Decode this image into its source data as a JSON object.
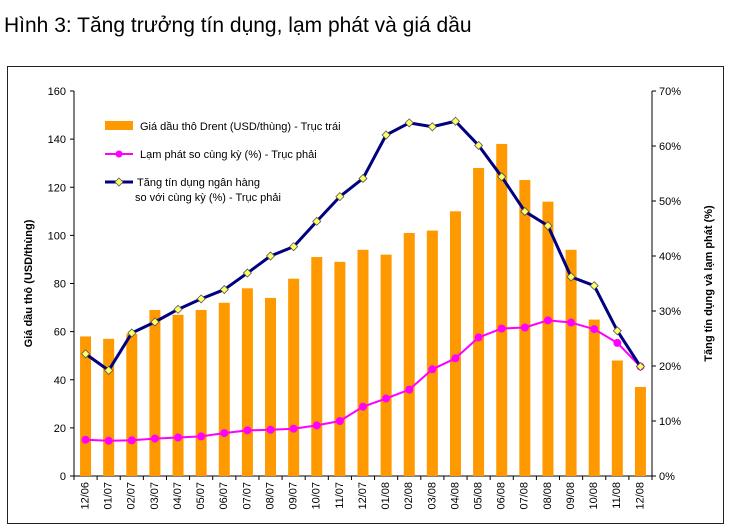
{
  "figure_title": "Hình 3: Tăng trưởng tín dụng, lạm phát và giá dầu",
  "colors": {
    "bar": "#ff9900",
    "inflation": "#ff00ff",
    "credit": "#000080",
    "credit_marker": "#ffff66"
  },
  "chart_data": {
    "type": "bar",
    "categories": [
      "12/06",
      "01/07",
      "02/07",
      "03/07",
      "04/07",
      "05/07",
      "06/07",
      "07/07",
      "08/07",
      "09/07",
      "10/07",
      "11/07",
      "12/07",
      "01/08",
      "02/08",
      "03/08",
      "04/08",
      "05/08",
      "06/08",
      "07/08",
      "08/08",
      "09/08",
      "10/08",
      "11/08",
      "12/08"
    ],
    "ylabel_left": "Giá dầu thô (USD/thùng)",
    "ylabel_right": "Tăng tín dụng và lạm phát (%)",
    "ylim_left": [
      0,
      160
    ],
    "ylim_right": [
      0,
      70
    ],
    "yticks_left": [
      "0",
      "20",
      "40",
      "60",
      "80",
      "100",
      "120",
      "140",
      "160"
    ],
    "yticks_right": [
      "0%",
      "10%",
      "20%",
      "30%",
      "40%",
      "50%",
      "60%",
      "70%"
    ],
    "grid": false,
    "legend_position": "top-left",
    "series": [
      {
        "name": "Giá dầu thô Drent (USD/thùng) - Trục trái",
        "kind": "bar",
        "axis": "left",
        "values": [
          58,
          57,
          59,
          69,
          67,
          69,
          72,
          78,
          74,
          82,
          91,
          89,
          94,
          92,
          101,
          102,
          110,
          128,
          138,
          123,
          114,
          94,
          65,
          48,
          37
        ]
      },
      {
        "name": "Lạm phát so cùng kỳ (%) - Trục phải",
        "kind": "line",
        "axis": "right",
        "values": [
          6.6,
          6.4,
          6.5,
          6.8,
          7.0,
          7.2,
          7.8,
          8.3,
          8.4,
          8.6,
          9.2,
          10.0,
          12.6,
          14.1,
          15.7,
          19.4,
          21.4,
          25.2,
          26.8,
          27.0,
          28.3,
          27.9,
          26.7,
          24.2,
          19.9
        ]
      },
      {
        "name": "Tăng tín dụng ngân hàng so với cùng kỳ (%) - Trục phải",
        "name_lines": [
          "Tăng tín dụng ngân hàng",
          "so với cùng kỳ (%) - Trục phải"
        ],
        "kind": "line",
        "axis": "right",
        "values": [
          22.2,
          19.2,
          26.0,
          28.0,
          30.3,
          32.2,
          33.9,
          36.9,
          40.0,
          41.7,
          46.3,
          50.8,
          54.1,
          62.0,
          64.2,
          63.5,
          64.5,
          60.1,
          54.4,
          48.1,
          45.5,
          36.2,
          34.6,
          26.4,
          19.9
        ]
      }
    ]
  }
}
